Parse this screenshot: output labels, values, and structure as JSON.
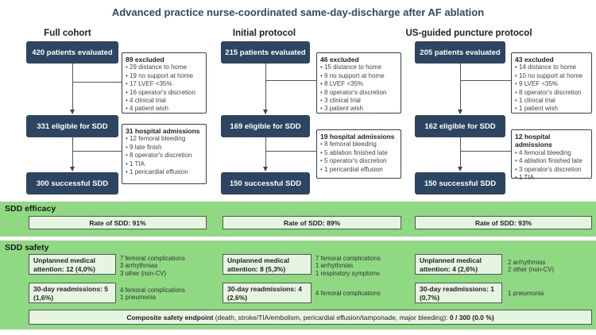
{
  "title": "Advanced practice nurse-coordinated same-day-discharge after AF ablation",
  "columns": [
    {
      "heading": "Full cohort",
      "evaluated": "420 patients evaluated",
      "excluded": {
        "header": "89 excluded",
        "items": [
          "29 distance to home",
          "19 no support at home",
          "17 LVEF <35%",
          "16 operator's discretion",
          "4 clinical trial",
          "4 patient wish"
        ]
      },
      "eligible": "331 eligible for SDD",
      "admissions": {
        "header": "31 hospital admissions",
        "items": [
          "12 femoral bleeding",
          "9 late finish",
          "8 operator's discretion",
          "1 TIA",
          "1 pericardial effusion"
        ]
      },
      "successful": "300 successful SDD"
    },
    {
      "heading": "Initial protocol",
      "evaluated": "215 patients evaluated",
      "excluded": {
        "header": "46 excluded",
        "items": [
          "15 distance to home",
          "9 no support at home",
          "8 LVEF <35%",
          "8 operator's discretion",
          "3 clinical trial",
          "3 patient wish"
        ]
      },
      "eligible": "169 eligible for SDD",
      "admissions": {
        "header": "19 hospital admissions",
        "items": [
          "8 femoral bleeding",
          "5 ablation finished late",
          "5 operator's discretion",
          "1 pericardial effusion"
        ]
      },
      "successful": "150 successful SDD"
    },
    {
      "heading": "US-guided puncture protocol",
      "evaluated": "205 patients evaluated",
      "excluded": {
        "header": "43 excluded",
        "items": [
          "14 distance to home",
          "10 no support at home",
          "9 LVEF <35%",
          "8 operator's discretion",
          "1 clinical trial",
          "1 patient wish"
        ]
      },
      "eligible": "162 eligible for SDD",
      "admissions": {
        "header": "12 hospital admissions",
        "items": [
          "4 femoral bleeding",
          "4 ablation finished late",
          "3 operator's discretion",
          "1 TIA"
        ]
      },
      "successful": "150 successful SDD"
    }
  ],
  "efficacy": {
    "title": "SDD efficacy",
    "rates": [
      "Rate of SDD: 91%",
      "Rate of SDD: 89%",
      "Rate of SDD: 93%"
    ]
  },
  "safety": {
    "title": "SDD safety",
    "groups": [
      {
        "unplanned_label": "Unplanned medical attention: 12 (4,0%)",
        "unplanned_details": [
          "7 femoral complications",
          "3 arrhythmias",
          "3 other (non-CV)"
        ],
        "readmission_label": "30-day readmissions: 5 (1,6%)",
        "readmission_details": [
          "4 femoral complications",
          "1 pneumonia"
        ]
      },
      {
        "unplanned_label": "Unplanned medical attention: 8 (5,3%)",
        "unplanned_details": [
          "7 femoral complications",
          "1 arrhythmias",
          "1 respiratory symptoms"
        ],
        "readmission_label": "30-day readmissions: 4 (2,6%)",
        "readmission_details": [
          "4 femoral complications"
        ]
      },
      {
        "unplanned_label": "Unplanned medical attention: 4 (2,6%)",
        "unplanned_details": [
          "2 arrhythmias",
          "2 other (non-CV)"
        ],
        "readmission_label": "30-day readmissions: 1 (0,7%)",
        "readmission_details": [
          "1 pneumonia"
        ]
      }
    ],
    "composite_label": "Composite safety endpoint",
    "composite_detail": " (death, stroke/TIA/embolism, pericardial effusion/tamponade, major bleeding):",
    "composite_value": " 0 / 300 (0.0 %)"
  },
  "colors": {
    "navy": "#2b4563",
    "band": "#8fd982",
    "pill": "#e6f5e1"
  }
}
